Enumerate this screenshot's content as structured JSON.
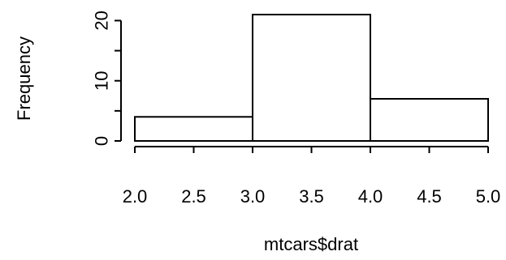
{
  "chart_data": {
    "type": "bar",
    "subtype": "histogram",
    "title": "",
    "xlabel": "mtcars$drat",
    "ylabel": "Frequency",
    "bins": [
      {
        "start": 2.0,
        "end": 3.0,
        "count": 4
      },
      {
        "start": 3.0,
        "end": 4.0,
        "count": 21
      },
      {
        "start": 4.0,
        "end": 5.0,
        "count": 7
      }
    ],
    "xlim": [
      2.0,
      5.0
    ],
    "ylim": [
      0,
      21
    ],
    "x_ticks": [
      "2.0",
      "2.5",
      "3.0",
      "3.5",
      "4.0",
      "4.5",
      "5.0"
    ],
    "y_ticks": [
      "0",
      "10",
      "20"
    ],
    "y_tick_values": [
      0,
      10,
      20
    ],
    "y_minor_ticks": [
      5,
      15
    ],
    "grid": false,
    "legend": "none",
    "bar_fill": "#ffffff",
    "bar_stroke": "#000000"
  }
}
